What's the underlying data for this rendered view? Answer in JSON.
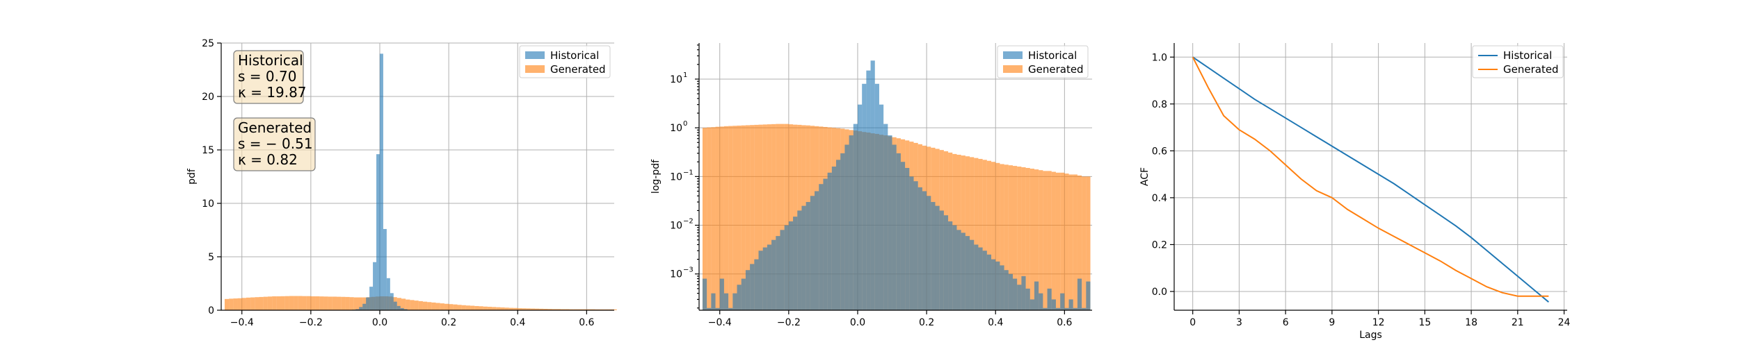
{
  "colors": {
    "historical": "#1f77b4",
    "generated": "#ff7f0e",
    "box_fill": "#f5deb3",
    "box_edge": "#7f7f7f"
  },
  "chart_data": [
    {
      "id": "pdf",
      "type": "histogram",
      "ylabel": "pdf",
      "xlim": [
        -0.46,
        0.68
      ],
      "ylim": [
        0,
        25
      ],
      "xticks": [
        -0.4,
        -0.2,
        0.0,
        0.2,
        0.4,
        0.6
      ],
      "xtick_labels": [
        "−0.4",
        "−0.2",
        "0.0",
        "0.2",
        "0.4",
        "0.6"
      ],
      "yticks": [
        0,
        5,
        10,
        15,
        20,
        25
      ],
      "ytick_labels": [
        "0",
        "5",
        "10",
        "15",
        "20",
        "25"
      ],
      "grid": true,
      "legend": "top-right",
      "series": [
        {
          "name": "Historical",
          "bin_start": -0.08,
          "bin_width": 0.01,
          "alpha": 0.6,
          "values": [
            0.05,
            0.1,
            0.3,
            0.6,
            1.2,
            2.2,
            4.5,
            14.6,
            24.0,
            7.6,
            3.0,
            1.6,
            0.8,
            0.4,
            0.2,
            0.1
          ]
        },
        {
          "name": "Generated",
          "bin_start": -0.45,
          "bin_width": 0.0125,
          "alpha": 0.6,
          "values": [
            1.05,
            1.08,
            1.1,
            1.12,
            1.15,
            1.18,
            1.2,
            1.22,
            1.24,
            1.26,
            1.28,
            1.3,
            1.3,
            1.31,
            1.32,
            1.33,
            1.33,
            1.33,
            1.32,
            1.32,
            1.3,
            1.3,
            1.29,
            1.28,
            1.27,
            1.27,
            1.26,
            1.25,
            1.24,
            1.22,
            1.2,
            1.2,
            1.2,
            1.22,
            1.25,
            1.28,
            1.3,
            1.3,
            1.28,
            1.22,
            1.15,
            1.08,
            1.0,
            0.95,
            0.9,
            0.85,
            0.8,
            0.76,
            0.72,
            0.68,
            0.64,
            0.6,
            0.57,
            0.54,
            0.5,
            0.47,
            0.44,
            0.42,
            0.39,
            0.37,
            0.34,
            0.32,
            0.3,
            0.28,
            0.26,
            0.24,
            0.22,
            0.21,
            0.19,
            0.18,
            0.17,
            0.16,
            0.15,
            0.14,
            0.13,
            0.12,
            0.11,
            0.11,
            0.1,
            0.1,
            0.09,
            0.09,
            0.09,
            0.09,
            0.09,
            0.09,
            0.08,
            0.08,
            0.08,
            0.08,
            0.08
          ]
        }
      ],
      "annotations": [
        {
          "lines": [
            "Historical",
            "s = 0.70",
            "κ = 19.87"
          ]
        },
        {
          "lines": [
            "Generated",
            "s = − 0.51",
            "κ = 0.82"
          ]
        }
      ]
    },
    {
      "id": "logpdf",
      "type": "histogram",
      "yscale": "log",
      "ylabel": "log-pdf",
      "xlim": [
        -0.46,
        0.68
      ],
      "ylim": [
        0.00018,
        55
      ],
      "xticks": [
        -0.4,
        -0.2,
        0.0,
        0.2,
        0.4,
        0.6
      ],
      "xtick_labels": [
        "−0.4",
        "−0.2",
        "0.0",
        "0.2",
        "0.4",
        "0.6"
      ],
      "yticks": [
        0.001,
        0.01,
        0.1,
        1,
        10
      ],
      "ytick_labels": [
        [
          "10",
          "−3"
        ],
        [
          "10",
          "−2"
        ],
        [
          "10",
          "−1"
        ],
        [
          "10",
          "0"
        ],
        [
          "10",
          "1"
        ]
      ],
      "grid": true,
      "legend": "top-right",
      "series": [
        {
          "name": "Generated",
          "bin_start": -0.45,
          "bin_width": 0.0125,
          "alpha": 0.6,
          "values": [
            1.0,
            1.02,
            1.03,
            1.05,
            1.06,
            1.08,
            1.09,
            1.1,
            1.11,
            1.12,
            1.13,
            1.14,
            1.15,
            1.16,
            1.17,
            1.18,
            1.19,
            1.2,
            1.2,
            1.2,
            1.18,
            1.16,
            1.15,
            1.13,
            1.12,
            1.1,
            1.08,
            1.06,
            1.04,
            1.02,
            1.0,
            0.98,
            0.96,
            0.93,
            0.9,
            0.88,
            0.85,
            0.82,
            0.8,
            0.77,
            0.75,
            0.72,
            0.7,
            0.67,
            0.64,
            0.61,
            0.58,
            0.55,
            0.52,
            0.49,
            0.46,
            0.43,
            0.41,
            0.39,
            0.37,
            0.35,
            0.33,
            0.31,
            0.29,
            0.28,
            0.27,
            0.26,
            0.25,
            0.24,
            0.23,
            0.22,
            0.21,
            0.2,
            0.19,
            0.18,
            0.175,
            0.17,
            0.165,
            0.16,
            0.155,
            0.15,
            0.145,
            0.14,
            0.135,
            0.13,
            0.13,
            0.125,
            0.12,
            0.12,
            0.115,
            0.11,
            0.11,
            0.105,
            0.1,
            0.1
          ]
        },
        {
          "name": "Historical",
          "bin_start": -0.45,
          "bin_width": 0.0125,
          "alpha": 0.6,
          "values": [
            0.0008,
            0.0002,
            0.0004,
            0.0002,
            0.0008,
            0.0004,
            0.0002,
            0.0004,
            0.0006,
            0.0008,
            0.0012,
            0.0016,
            0.002,
            0.003,
            0.0035,
            0.004,
            0.005,
            0.006,
            0.008,
            0.01,
            0.012,
            0.015,
            0.02,
            0.025,
            0.03,
            0.04,
            0.05,
            0.07,
            0.09,
            0.12,
            0.16,
            0.22,
            0.3,
            0.45,
            0.7,
            1.2,
            3.0,
            8.0,
            15.0,
            24.0,
            8.0,
            3.0,
            1.2,
            0.7,
            0.45,
            0.3,
            0.2,
            0.15,
            0.1,
            0.08,
            0.06,
            0.05,
            0.04,
            0.03,
            0.025,
            0.02,
            0.016,
            0.012,
            0.01,
            0.008,
            0.007,
            0.006,
            0.005,
            0.004,
            0.0035,
            0.003,
            0.0025,
            0.002,
            0.0018,
            0.0015,
            0.0012,
            0.001,
            0.0008,
            0.0006,
            0.0009,
            0.0005,
            0.0003,
            0.0007,
            0.0004,
            0.0002,
            0.0005,
            0.0003,
            0.0002,
            0.0004,
            0.0002,
            0.0003,
            0.0002,
            0.0008,
            0.0002,
            0.0007
          ]
        }
      ]
    },
    {
      "id": "acf",
      "type": "line",
      "ylabel": "ACF",
      "xlabel": "Lags",
      "xlim": [
        -1.2,
        24.2
      ],
      "ylim": [
        -0.08,
        1.06
      ],
      "xticks": [
        0,
        3,
        6,
        9,
        12,
        15,
        18,
        21,
        24
      ],
      "xtick_labels": [
        "0",
        "3",
        "6",
        "9",
        "12",
        "15",
        "18",
        "21",
        "24"
      ],
      "yticks": [
        0.0,
        0.2,
        0.4,
        0.6,
        0.8,
        1.0
      ],
      "ytick_labels": [
        "0.0",
        "0.2",
        "0.4",
        "0.6",
        "0.8",
        "1.0"
      ],
      "grid": true,
      "legend": "top-right",
      "x": [
        0,
        1,
        2,
        3,
        4,
        5,
        6,
        7,
        8,
        9,
        10,
        11,
        12,
        13,
        14,
        15,
        16,
        17,
        18,
        19,
        20,
        21,
        22,
        23
      ],
      "series": [
        {
          "name": "Historical",
          "values": [
            1.0,
            0.955,
            0.91,
            0.865,
            0.82,
            0.78,
            0.74,
            0.7,
            0.66,
            0.62,
            0.58,
            0.54,
            0.5,
            0.46,
            0.415,
            0.37,
            0.325,
            0.28,
            0.23,
            0.175,
            0.12,
            0.065,
            0.01,
            -0.045
          ]
        },
        {
          "name": "Generated",
          "values": [
            1.0,
            0.87,
            0.75,
            0.69,
            0.65,
            0.6,
            0.54,
            0.48,
            0.43,
            0.4,
            0.35,
            0.31,
            0.27,
            0.235,
            0.2,
            0.165,
            0.13,
            0.09,
            0.055,
            0.02,
            -0.005,
            -0.02,
            -0.02,
            -0.02
          ]
        }
      ]
    }
  ]
}
